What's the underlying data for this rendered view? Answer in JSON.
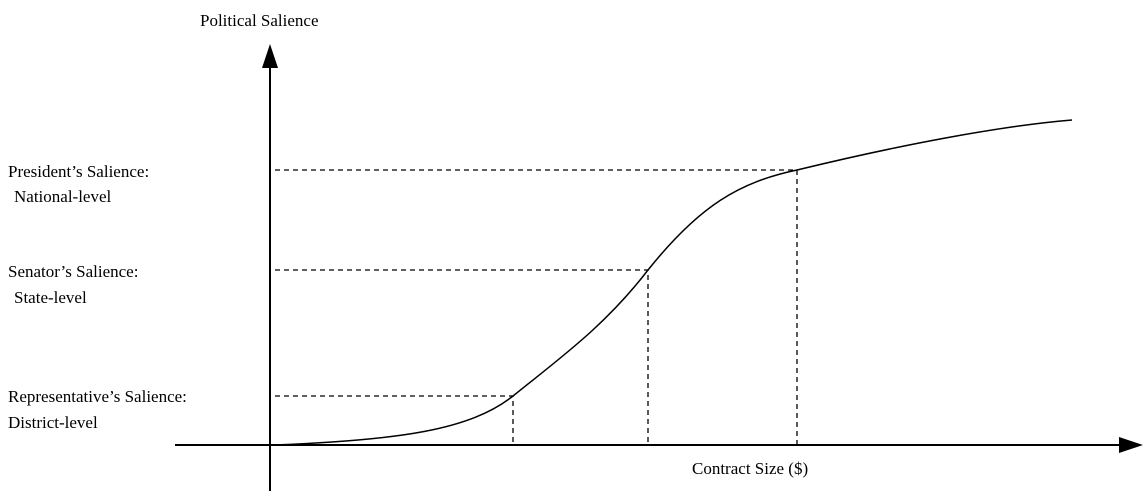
{
  "axes": {
    "y_label": "Political Salience",
    "x_label": "Contract Size ($)"
  },
  "levels": [
    {
      "title": "President’s Salience:",
      "scope": "National-level"
    },
    {
      "title": "Senator’s Salience:",
      "scope": "State-level"
    },
    {
      "title": "Representative’s Salience:",
      "scope": "District-level"
    }
  ]
}
